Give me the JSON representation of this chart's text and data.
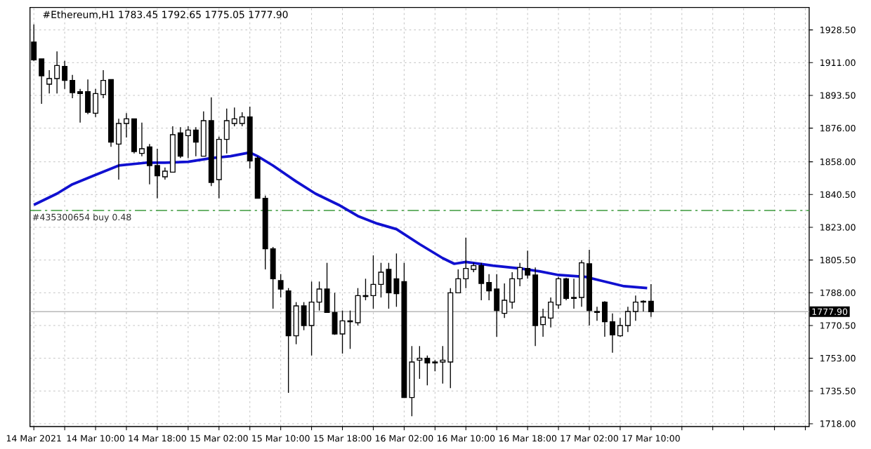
{
  "chart_data": {
    "type": "candlestick",
    "title": "#Ethereum,H1 1783.45 1792.65 1775.05 1777.90",
    "x": [
      "2021-03-14T02:00",
      "2021-03-14T03:00",
      "2021-03-14T04:00",
      "2021-03-14T05:00",
      "2021-03-14T06:00",
      "2021-03-14T07:00",
      "2021-03-14T08:00",
      "2021-03-14T09:00",
      "2021-03-14T10:00",
      "2021-03-14T11:00",
      "2021-03-14T12:00",
      "2021-03-14T13:00",
      "2021-03-14T14:00",
      "2021-03-14T15:00",
      "2021-03-14T16:00",
      "2021-03-14T17:00",
      "2021-03-14T18:00",
      "2021-03-14T19:00",
      "2021-03-14T20:00",
      "2021-03-14T21:00",
      "2021-03-14T22:00",
      "2021-03-14T23:00",
      "2021-03-15T00:00",
      "2021-03-15T01:00",
      "2021-03-15T02:00",
      "2021-03-15T03:00",
      "2021-03-15T04:00",
      "2021-03-15T05:00",
      "2021-03-15T06:00",
      "2021-03-15T07:00",
      "2021-03-15T08:00",
      "2021-03-15T09:00",
      "2021-03-15T10:00",
      "2021-03-15T11:00",
      "2021-03-15T12:00",
      "2021-03-15T13:00",
      "2021-03-15T14:00",
      "2021-03-15T15:00",
      "2021-03-15T16:00",
      "2021-03-15T17:00",
      "2021-03-15T18:00",
      "2021-03-15T19:00",
      "2021-03-15T20:00",
      "2021-03-15T21:00",
      "2021-03-15T22:00",
      "2021-03-15T23:00",
      "2021-03-16T00:00",
      "2021-03-16T01:00",
      "2021-03-16T02:00",
      "2021-03-16T03:00",
      "2021-03-16T04:00",
      "2021-03-16T05:00",
      "2021-03-16T06:00",
      "2021-03-16T07:00",
      "2021-03-16T08:00",
      "2021-03-16T09:00",
      "2021-03-16T10:00",
      "2021-03-16T11:00",
      "2021-03-16T12:00",
      "2021-03-16T13:00",
      "2021-03-16T14:00",
      "2021-03-16T15:00",
      "2021-03-16T16:00",
      "2021-03-16T17:00",
      "2021-03-16T18:00",
      "2021-03-16T19:00",
      "2021-03-16T20:00",
      "2021-03-16T21:00",
      "2021-03-16T22:00",
      "2021-03-16T23:00",
      "2021-03-17T00:00",
      "2021-03-17T01:00",
      "2021-03-17T02:00",
      "2021-03-17T03:00",
      "2021-03-17T04:00",
      "2021-03-17T05:00",
      "2021-03-17T06:00",
      "2021-03-17T07:00",
      "2021-03-17T08:00",
      "2021-03-17T09:00",
      "2021-03-17T10:00"
    ],
    "ohlc": [
      [
        1922,
        1931.5,
        1912,
        1912.5
      ],
      [
        1913,
        1913,
        1889,
        1904
      ],
      [
        1899.5,
        1907,
        1894.5,
        1902.5
      ],
      [
        1902.5,
        1917,
        1894.5,
        1909.5
      ],
      [
        1909,
        1912,
        1897,
        1901.5
      ],
      [
        1901.5,
        1904.5,
        1892,
        1895
      ],
      [
        1895.5,
        1897,
        1879,
        1894.5
      ],
      [
        1895.5,
        1902,
        1883.5,
        1884.5
      ],
      [
        1884,
        1897,
        1882,
        1894.5
      ],
      [
        1894,
        1907,
        1892,
        1901.5
      ],
      [
        1902,
        1902,
        1866,
        1868.5
      ],
      [
        1867.5,
        1881,
        1848.5,
        1878.5
      ],
      [
        1878.5,
        1884,
        1871,
        1881
      ],
      [
        1881,
        1881,
        1862.5,
        1863.5
      ],
      [
        1862.5,
        1879,
        1861,
        1865
      ],
      [
        1866,
        1867.5,
        1846,
        1856
      ],
      [
        1856,
        1865,
        1838.5,
        1850.5
      ],
      [
        1850,
        1855,
        1848.5,
        1853
      ],
      [
        1852.5,
        1877,
        1852.5,
        1872.5
      ],
      [
        1873.5,
        1876.5,
        1860,
        1861
      ],
      [
        1872,
        1877,
        1860,
        1875
      ],
      [
        1875,
        1876.5,
        1861,
        1868.5
      ],
      [
        1861,
        1885,
        1861,
        1880
      ],
      [
        1880,
        1892.5,
        1845,
        1847
      ],
      [
        1848.5,
        1871.5,
        1838.5,
        1870
      ],
      [
        1870,
        1886.5,
        1862.5,
        1880
      ],
      [
        1878.5,
        1887,
        1877,
        1881
      ],
      [
        1878.5,
        1884.5,
        1877,
        1882
      ],
      [
        1882,
        1887.5,
        1854.5,
        1858.5
      ],
      [
        1860,
        1861,
        1838.5,
        1838.5
      ],
      [
        1838.5,
        1840,
        1800.5,
        1811.5
      ],
      [
        1811.5,
        1812.5,
        1779.5,
        1795.5
      ],
      [
        1794.5,
        1798,
        1785.5,
        1790
      ],
      [
        1789,
        1790.5,
        1734.5,
        1765
      ],
      [
        1765,
        1783,
        1760.5,
        1781
      ],
      [
        1781,
        1783,
        1768,
        1770.5
      ],
      [
        1770.5,
        1794,
        1754.5,
        1783
      ],
      [
        1783,
        1794,
        1778.5,
        1790
      ],
      [
        1790,
        1804,
        1777.5,
        1777.5
      ],
      [
        1777.5,
        1788,
        1765.5,
        1766
      ],
      [
        1766,
        1778.5,
        1755.5,
        1773
      ],
      [
        1772.5,
        1778.5,
        1758,
        1773
      ],
      [
        1772,
        1790.5,
        1770.5,
        1786.5
      ],
      [
        1786,
        1795.5,
        1784,
        1786.5
      ],
      [
        1786.5,
        1808,
        1779.5,
        1792.5
      ],
      [
        1792.5,
        1804,
        1785.5,
        1799
      ],
      [
        1800.5,
        1804,
        1779.5,
        1788
      ],
      [
        1795.5,
        1809,
        1780.5,
        1787.5
      ],
      [
        1794,
        1804,
        1732,
        1732
      ],
      [
        1732,
        1759.5,
        1722,
        1751
      ],
      [
        1752,
        1759.5,
        1742,
        1753
      ],
      [
        1753,
        1754.5,
        1738.5,
        1750.5
      ],
      [
        1751,
        1752,
        1746,
        1750.5
      ],
      [
        1751,
        1759.5,
        1739.5,
        1752
      ],
      [
        1751,
        1790.5,
        1737,
        1788
      ],
      [
        1788,
        1800.5,
        1788,
        1795.5
      ],
      [
        1795.5,
        1817.5,
        1790.5,
        1801
      ],
      [
        1800.5,
        1804,
        1799,
        1802.5
      ],
      [
        1802.5,
        1804,
        1784,
        1793
      ],
      [
        1793.5,
        1798,
        1784,
        1789
      ],
      [
        1790,
        1798,
        1764.5,
        1778.5
      ],
      [
        1777,
        1793,
        1774.5,
        1784
      ],
      [
        1783,
        1799,
        1779.5,
        1795.5
      ],
      [
        1795.5,
        1804,
        1791.5,
        1801.5
      ],
      [
        1801,
        1810.5,
        1795.5,
        1797.5
      ],
      [
        1797.5,
        1801.5,
        1759.5,
        1770.5
      ],
      [
        1771,
        1779.5,
        1764.5,
        1775
      ],
      [
        1774.5,
        1785.5,
        1769.5,
        1783
      ],
      [
        1781.5,
        1796.5,
        1779.5,
        1795.5
      ],
      [
        1795.5,
        1796,
        1784,
        1785
      ],
      [
        1785.5,
        1795.5,
        1779.5,
        1785
      ],
      [
        1785.5,
        1805.5,
        1780.5,
        1804
      ],
      [
        1803.5,
        1811,
        1770.5,
        1778.5
      ],
      [
        1778,
        1780.5,
        1773,
        1777.5
      ],
      [
        1783,
        1783.5,
        1764.5,
        1772.5
      ],
      [
        1772.5,
        1777,
        1756,
        1765.5
      ],
      [
        1765,
        1774.5,
        1764.5,
        1770.5
      ],
      [
        1770.5,
        1780.5,
        1767,
        1778
      ],
      [
        1778,
        1786.5,
        1773,
        1783
      ],
      [
        1783,
        1784,
        1778,
        1783.5
      ],
      [
        1783.45,
        1792.65,
        1775.05,
        1777.9
      ]
    ],
    "series": [
      {
        "type": "line",
        "color": "#1010d0",
        "x": [
          "2021-03-14T02:00",
          "2021-03-14T05:00",
          "2021-03-14T07:00",
          "2021-03-14T10:00",
          "2021-03-14T13:00",
          "2021-03-14T16:30",
          "2021-03-14T19:00",
          "2021-03-14T22:00",
          "2021-03-15T01:00",
          "2021-03-15T03:30",
          "2021-03-15T06:00",
          "2021-03-15T07:00",
          "2021-03-15T09:00",
          "2021-03-15T12:00",
          "2021-03-15T14:30",
          "2021-03-15T17:30",
          "2021-03-15T20:00",
          "2021-03-15T22:30",
          "2021-03-16T01:00",
          "2021-03-16T04:00",
          "2021-03-16T07:00",
          "2021-03-16T08:30",
          "2021-03-16T10:00",
          "2021-03-16T13:30",
          "2021-03-16T17:00",
          "2021-03-16T19:30",
          "2021-03-16T22:00",
          "2021-03-17T01:30",
          "2021-03-17T03:30",
          "2021-03-17T06:30",
          "2021-03-17T09:30"
        ],
        "values": [
          1835,
          1841,
          1846,
          1851,
          1856,
          1857.5,
          1857.5,
          1858,
          1860,
          1861,
          1863,
          1861,
          1856,
          1847.5,
          1841,
          1835,
          1829,
          1825,
          1822,
          1814,
          1806.5,
          1803.5,
          1804.5,
          1802.5,
          1801,
          1799.5,
          1797.5,
          1796.5,
          1794.5,
          1791.5,
          1790.5
        ]
      }
    ],
    "xlim": [
      "2021-03-14T01:30",
      "2021-03-18T06:30"
    ],
    "xticks": [
      {
        "value": "2021-03-14T02:00",
        "label": "14 Mar 2021"
      },
      {
        "value": "2021-03-14T06:00",
        "label": null
      },
      {
        "value": "2021-03-14T10:00",
        "label": "14 Mar 10:00"
      },
      {
        "value": "2021-03-14T14:00",
        "label": null
      },
      {
        "value": "2021-03-14T18:00",
        "label": "14 Mar 18:00"
      },
      {
        "value": "2021-03-14T22:00",
        "label": null
      },
      {
        "value": "2021-03-15T02:00",
        "label": "15 Mar 02:00"
      },
      {
        "value": "2021-03-15T06:00",
        "label": null
      },
      {
        "value": "2021-03-15T10:00",
        "label": "15 Mar 10:00"
      },
      {
        "value": "2021-03-15T14:00",
        "label": null
      },
      {
        "value": "2021-03-15T18:00",
        "label": "15 Mar 18:00"
      },
      {
        "value": "2021-03-15T22:00",
        "label": null
      },
      {
        "value": "2021-03-16T02:00",
        "label": "16 Mar 02:00"
      },
      {
        "value": "2021-03-16T06:00",
        "label": null
      },
      {
        "value": "2021-03-16T10:00",
        "label": "16 Mar 10:00"
      },
      {
        "value": "2021-03-16T14:00",
        "label": null
      },
      {
        "value": "2021-03-16T18:00",
        "label": "16 Mar 18:00"
      },
      {
        "value": "2021-03-16T22:00",
        "label": null
      },
      {
        "value": "2021-03-17T02:00",
        "label": "17 Mar 02:00"
      },
      {
        "value": "2021-03-17T06:00",
        "label": null
      },
      {
        "value": "2021-03-17T10:00",
        "label": "17 Mar 10:00"
      },
      {
        "value": "2021-03-17T14:00",
        "label": null
      },
      {
        "value": "2021-03-17T18:00",
        "label": null
      },
      {
        "value": "2021-03-17T22:00",
        "label": null
      },
      {
        "value": "2021-03-18T02:00",
        "label": null
      },
      {
        "value": "2021-03-18T06:00",
        "label": null
      }
    ],
    "ylim": [
      1716.5,
      1940.5
    ],
    "yticks": [
      {
        "value": 1718,
        "label": "1718.00"
      },
      {
        "value": 1735.5,
        "label": "1735.50"
      },
      {
        "value": 1753,
        "label": "1753.00"
      },
      {
        "value": 1770.5,
        "label": "1770.50"
      },
      {
        "value": 1788,
        "label": "1788.00"
      },
      {
        "value": 1805.5,
        "label": "1805.50"
      },
      {
        "value": 1823,
        "label": "1823.00"
      },
      {
        "value": 1840.5,
        "label": "1840.50"
      },
      {
        "value": 1858,
        "label": "1858.00"
      },
      {
        "value": 1876,
        "label": "1876.00"
      },
      {
        "value": 1893.5,
        "label": "1893.50"
      },
      {
        "value": 1911,
        "label": "1911.00"
      },
      {
        "value": 1928.5,
        "label": "1928.50"
      }
    ],
    "grid": true,
    "ref_lines": [
      {
        "axis": "y",
        "value": 1832,
        "label": "#435300654 buy 0.48",
        "color": "#3c9a3c",
        "line_style": "dashdot"
      },
      {
        "axis": "y",
        "value": 1777.9,
        "label": "1777.90",
        "color": "#b8b8b8",
        "line_style": "solid"
      }
    ]
  }
}
